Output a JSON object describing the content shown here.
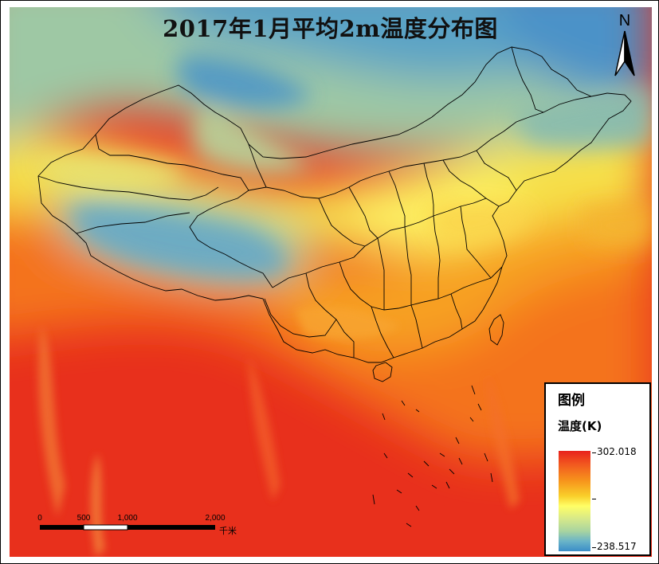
{
  "map": {
    "title": "2017年1月平均2m温度分布图",
    "north_arrow": {
      "label": "N",
      "icon": "north-arrow-icon"
    },
    "scale_bar": {
      "ticks": [
        "0",
        "500",
        "1,000",
        "2,000"
      ],
      "unit": "千米"
    },
    "legend": {
      "title": "图例",
      "subtitle": "温度(K)",
      "max_label": "302.018",
      "min_label": "238.517",
      "colors": [
        "#e8211d",
        "#f7951c",
        "#ffff66",
        "#a8d4a0",
        "#3a8dc8"
      ]
    },
    "colors": {
      "hot": "#e8211d",
      "warm": "#f7951c",
      "mild": "#ffff66",
      "cool": "#a8d4a0",
      "cold": "#3a8dc8"
    }
  }
}
